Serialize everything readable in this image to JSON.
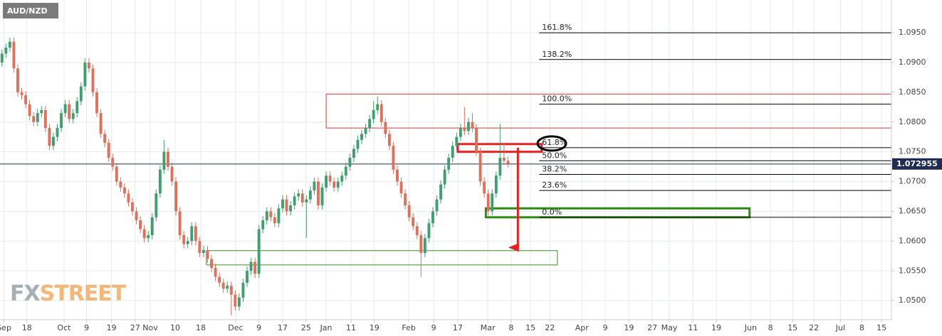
{
  "chart_data": {
    "type": "candlestick",
    "title": "AUD/NZD",
    "watermark": [
      "FX",
      "STREET"
    ],
    "up_color": "#3f9f6f",
    "down_color": "#e0705a",
    "grid": true,
    "xlim": [
      -0.5,
      225
    ],
    "ylim": [
      1.0468,
      1.1005
    ],
    "yticks": [
      {
        "value": 1.05,
        "label": "1.0500"
      },
      {
        "value": 1.055,
        "label": "1.0550"
      },
      {
        "value": 1.06,
        "label": "1.0600"
      },
      {
        "value": 1.065,
        "label": "1.0650"
      },
      {
        "value": 1.07,
        "label": "1.0700"
      },
      {
        "value": 1.075,
        "label": "1.0750"
      },
      {
        "value": 1.08,
        "label": "1.0800"
      },
      {
        "value": 1.085,
        "label": "1.0850"
      },
      {
        "value": 1.09,
        "label": "1.0900"
      },
      {
        "value": 1.095,
        "label": "1.0950"
      }
    ],
    "xticks": [
      {
        "value": 0.5,
        "label": "Sep"
      },
      {
        "value": 6.3,
        "label": "18"
      },
      {
        "value": 15.7,
        "label": "Oct"
      },
      {
        "value": 21.4,
        "label": "9"
      },
      {
        "value": 27.7,
        "label": "19"
      },
      {
        "value": 33.7,
        "label": "27"
      },
      {
        "value": 37.5,
        "label": "Nov"
      },
      {
        "value": 43.8,
        "label": "10"
      },
      {
        "value": 50.3,
        "label": "18"
      },
      {
        "value": 59.1,
        "label": "Dec"
      },
      {
        "value": 65,
        "label": "9"
      },
      {
        "value": 71,
        "label": "17"
      },
      {
        "value": 76.9,
        "label": "25"
      },
      {
        "value": 82,
        "label": "Jan"
      },
      {
        "value": 88.3,
        "label": "11"
      },
      {
        "value": 94.2,
        "label": "19"
      },
      {
        "value": 102.9,
        "label": "Feb"
      },
      {
        "value": 109.2,
        "label": "9"
      },
      {
        "value": 115.3,
        "label": "17"
      },
      {
        "value": 122.9,
        "label": "Mar"
      },
      {
        "value": 128.8,
        "label": "8"
      },
      {
        "value": 133.7,
        "label": "15"
      },
      {
        "value": 138.6,
        "label": "22"
      },
      {
        "value": 146.7,
        "label": "Apr"
      },
      {
        "value": 152.6,
        "label": "9"
      },
      {
        "value": 158.6,
        "label": "19"
      },
      {
        "value": 164.5,
        "label": "27"
      },
      {
        "value": 168.8,
        "label": "May"
      },
      {
        "value": 174.8,
        "label": "11"
      },
      {
        "value": 180.7,
        "label": "19"
      },
      {
        "value": 189.4,
        "label": "Jun"
      },
      {
        "value": 194.4,
        "label": "8"
      },
      {
        "value": 200,
        "label": "15"
      },
      {
        "value": 205.4,
        "label": "22"
      },
      {
        "value": 212.1,
        "label": "Jul"
      },
      {
        "value": 217.5,
        "label": "8"
      },
      {
        "value": 222.5,
        "label": "15"
      }
    ],
    "current_price": 1.072955,
    "current_price_color": "#1f2d55",
    "fib_start": 135.9,
    "fib_levels": [
      {
        "label": "161.8%",
        "value": 1.095
      },
      {
        "label": "138.2%",
        "value": 1.0905
      },
      {
        "label": "100.0%",
        "value": 1.083
      },
      {
        "label": "61.8%",
        "value": 1.0757
      },
      {
        "label": "50.0%",
        "value": 1.0735
      },
      {
        "label": "38.2%",
        "value": 1.0712
      },
      {
        "label": "23.6%",
        "value": 1.0685
      },
      {
        "label": "0.0%",
        "value": 1.064
      }
    ],
    "zones": [
      {
        "x": [
          82,
          225
        ],
        "y": [
          1.079,
          1.0847
        ],
        "color": "#e03a3a",
        "width": 1
      },
      {
        "x": [
          51.7,
          140.5
        ],
        "y": [
          1.056,
          1.0584
        ],
        "color": "#3a8a20",
        "width": 1
      },
      {
        "x": [
          122.4,
          189.1
        ],
        "y": [
          1.064,
          1.0655
        ],
        "color": "#2e8a10",
        "width": 3
      },
      {
        "x": [
          115.3,
          136.5
        ],
        "y": [
          1.075,
          1.0763
        ],
        "color": "#e82020",
        "width": 3
      }
    ],
    "arrow": {
      "x": 130.5,
      "y": [
        1.0757,
        1.0575
      ],
      "color": "#e82020"
    },
    "candles": [
      [
        1.09,
        1.0922,
        1.0893,
        1.0915
      ],
      [
        1.0915,
        1.0932,
        1.0908,
        1.0925
      ],
      [
        1.0925,
        1.0942,
        1.0918,
        1.0935
      ],
      [
        1.0935,
        1.0942,
        1.0883,
        1.089
      ],
      [
        1.089,
        1.0897,
        1.0843,
        1.085
      ],
      [
        1.085,
        1.0857,
        1.0838,
        1.0845
      ],
      [
        1.0845,
        1.0852,
        1.0823,
        1.083
      ],
      [
        1.083,
        1.0837,
        1.0803,
        1.081
      ],
      [
        1.081,
        1.0817,
        1.0793,
        1.08
      ],
      [
        1.08,
        1.0822,
        1.0793,
        1.0815
      ],
      [
        1.0815,
        1.0827,
        1.0808,
        1.082
      ],
      [
        1.082,
        1.0827,
        1.0783,
        1.079
      ],
      [
        1.079,
        1.0797,
        1.0753,
        1.076
      ],
      [
        1.076,
        1.0782,
        1.0753,
        1.0775
      ],
      [
        1.0775,
        1.0797,
        1.0768,
        1.079
      ],
      [
        1.079,
        1.0822,
        1.0783,
        1.0815
      ],
      [
        1.0815,
        1.0837,
        1.0808,
        1.083
      ],
      [
        1.083,
        1.0837,
        1.0798,
        1.0805
      ],
      [
        1.0805,
        1.0822,
        1.0798,
        1.0815
      ],
      [
        1.0815,
        1.0842,
        1.0808,
        1.0835
      ],
      [
        1.0835,
        1.0867,
        1.0828,
        1.086
      ],
      [
        1.086,
        1.0907,
        1.0853,
        1.09
      ],
      [
        1.09,
        1.0907,
        1.0883,
        1.089
      ],
      [
        1.089,
        1.0897,
        1.0843,
        1.085
      ],
      [
        1.085,
        1.0857,
        1.0808,
        1.0815
      ],
      [
        1.0815,
        1.0822,
        1.0773,
        1.078
      ],
      [
        1.078,
        1.0787,
        1.0758,
        1.0765
      ],
      [
        1.0765,
        1.0772,
        1.0733,
        1.074
      ],
      [
        1.074,
        1.0747,
        1.0718,
        1.0725
      ],
      [
        1.0725,
        1.0732,
        1.0693,
        1.07
      ],
      [
        1.07,
        1.0707,
        1.0683,
        1.069
      ],
      [
        1.069,
        1.0697,
        1.0673,
        1.068
      ],
      [
        1.068,
        1.0687,
        1.0658,
        1.0665
      ],
      [
        1.0665,
        1.0672,
        1.0643,
        1.065
      ],
      [
        1.065,
        1.0657,
        1.0628,
        1.0635
      ],
      [
        1.0635,
        1.0642,
        1.0613,
        1.062
      ],
      [
        1.062,
        1.0627,
        1.0598,
        1.0605
      ],
      [
        1.0605,
        1.0617,
        1.0598,
        1.061
      ],
      [
        1.061,
        1.0647,
        1.0603,
        1.064
      ],
      [
        1.064,
        1.0687,
        1.0633,
        1.068
      ],
      [
        1.068,
        1.0727,
        1.0673,
        1.072
      ],
      [
        1.072,
        1.077,
        1.0713,
        1.075
      ],
      [
        1.075,
        1.0757,
        1.0718,
        1.0725
      ],
      [
        1.0725,
        1.0732,
        1.0693,
        1.07
      ],
      [
        1.07,
        1.0707,
        1.0643,
        1.065
      ],
      [
        1.065,
        1.0657,
        1.0603,
        1.061
      ],
      [
        1.061,
        1.0617,
        1.0588,
        1.0595
      ],
      [
        1.0595,
        1.0607,
        1.0588,
        1.06
      ],
      [
        1.06,
        1.0632,
        1.0593,
        1.0625
      ],
      [
        1.0625,
        1.0632,
        1.0593,
        1.06
      ],
      [
        1.06,
        1.0607,
        1.0573,
        1.058
      ],
      [
        1.058,
        1.0592,
        1.0573,
        1.0585
      ],
      [
        1.0585,
        1.0592,
        1.0563,
        1.057
      ],
      [
        1.057,
        1.0577,
        1.0548,
        1.0555
      ],
      [
        1.0555,
        1.0562,
        1.0533,
        1.054
      ],
      [
        1.054,
        1.0547,
        1.0523,
        1.053
      ],
      [
        1.053,
        1.0537,
        1.0513,
        1.052
      ],
      [
        1.052,
        1.0532,
        1.0513,
        1.0525
      ],
      [
        1.0525,
        1.0532,
        1.0475,
        1.051
      ],
      [
        1.051,
        1.0517,
        1.0483,
        1.049
      ],
      [
        1.049,
        1.0512,
        1.0483,
        1.0505
      ],
      [
        1.0505,
        1.0537,
        1.0498,
        1.053
      ],
      [
        1.053,
        1.0557,
        1.0523,
        1.055
      ],
      [
        1.055,
        1.0572,
        1.0543,
        1.0565
      ],
      [
        1.0565,
        1.0572,
        1.0538,
        1.0545
      ],
      [
        1.0545,
        1.0627,
        1.0538,
        1.062
      ],
      [
        1.062,
        1.0642,
        1.0613,
        1.0635
      ],
      [
        1.0635,
        1.0657,
        1.0628,
        1.065
      ],
      [
        1.065,
        1.0657,
        1.0633,
        1.064
      ],
      [
        1.064,
        1.0647,
        1.0623,
        1.063
      ],
      [
        1.063,
        1.0662,
        1.0623,
        1.0655
      ],
      [
        1.0655,
        1.0677,
        1.0648,
        1.067
      ],
      [
        1.067,
        1.0677,
        1.0643,
        1.065
      ],
      [
        1.065,
        1.0667,
        1.0643,
        1.066
      ],
      [
        1.066,
        1.0682,
        1.0653,
        1.0675
      ],
      [
        1.0675,
        1.0687,
        1.0668,
        1.068
      ],
      [
        1.068,
        1.0687,
        1.0658,
        1.0665
      ],
      [
        1.0665,
        1.0677,
        1.0605,
        1.067
      ],
      [
        1.067,
        1.0692,
        1.0663,
        1.0685
      ],
      [
        1.0685,
        1.0707,
        1.0678,
        1.07
      ],
      [
        1.07,
        1.0707,
        1.0653,
        1.066
      ],
      [
        1.066,
        1.0697,
        1.0653,
        1.069
      ],
      [
        1.069,
        1.0717,
        1.0683,
        1.071
      ],
      [
        1.071,
        1.0717,
        1.0693,
        1.07
      ],
      [
        1.07,
        1.0707,
        1.0683,
        1.069
      ],
      [
        1.069,
        1.0707,
        1.0683,
        1.07
      ],
      [
        1.07,
        1.0717,
        1.0693,
        1.071
      ],
      [
        1.071,
        1.0732,
        1.0703,
        1.0725
      ],
      [
        1.0725,
        1.0747,
        1.0718,
        1.074
      ],
      [
        1.074,
        1.0762,
        1.0733,
        1.0755
      ],
      [
        1.0755,
        1.0777,
        1.0748,
        1.077
      ],
      [
        1.077,
        1.0787,
        1.0763,
        1.078
      ],
      [
        1.078,
        1.0797,
        1.0773,
        1.079
      ],
      [
        1.079,
        1.0812,
        1.0783,
        1.0805
      ],
      [
        1.0805,
        1.0835,
        1.0798,
        1.082
      ],
      [
        1.082,
        1.0843,
        1.0813,
        1.083
      ],
      [
        1.083,
        1.0837,
        1.0793,
        1.08
      ],
      [
        1.08,
        1.0807,
        1.0773,
        1.078
      ],
      [
        1.078,
        1.0787,
        1.0753,
        1.076
      ],
      [
        1.076,
        1.0767,
        1.0713,
        1.072
      ],
      [
        1.072,
        1.0727,
        1.0693,
        1.07
      ],
      [
        1.07,
        1.0707,
        1.0673,
        1.068
      ],
      [
        1.068,
        1.0687,
        1.0653,
        1.066
      ],
      [
        1.066,
        1.0667,
        1.0633,
        1.064
      ],
      [
        1.064,
        1.0647,
        1.0618,
        1.0625
      ],
      [
        1.0625,
        1.0632,
        1.0603,
        1.061
      ],
      [
        1.061,
        1.0617,
        1.054,
        1.058
      ],
      [
        1.058,
        1.0612,
        1.0573,
        1.0605
      ],
      [
        1.0605,
        1.0637,
        1.0598,
        1.063
      ],
      [
        1.063,
        1.0657,
        1.0623,
        1.065
      ],
      [
        1.065,
        1.0677,
        1.0643,
        1.067
      ],
      [
        1.067,
        1.0702,
        1.0663,
        1.0695
      ],
      [
        1.0695,
        1.0727,
        1.0688,
        1.072
      ],
      [
        1.072,
        1.0747,
        1.0713,
        1.074
      ],
      [
        1.074,
        1.0767,
        1.0733,
        1.076
      ],
      [
        1.076,
        1.0782,
        1.0753,
        1.0775
      ],
      [
        1.0775,
        1.0797,
        1.0768,
        1.079
      ],
      [
        1.079,
        1.0825,
        1.0778,
        1.0785
      ],
      [
        1.0785,
        1.0807,
        1.0778,
        1.08
      ],
      [
        1.08,
        1.0815,
        1.0783,
        1.079
      ],
      [
        1.079,
        1.0797,
        1.0743,
        1.075
      ],
      [
        1.075,
        1.0757,
        1.0693,
        1.07
      ],
      [
        1.07,
        1.0707,
        1.0673,
        1.068
      ],
      [
        1.068,
        1.0687,
        1.0643,
        1.065
      ],
      [
        1.065,
        1.0687,
        1.0643,
        1.068
      ],
      [
        1.068,
        1.0717,
        1.0673,
        1.071
      ],
      [
        1.071,
        1.0797,
        1.0703,
        1.074
      ],
      [
        1.074,
        1.0765,
        1.0728,
        1.0735
      ],
      [
        1.0735,
        1.0742,
        1.0723,
        1.073
      ]
    ]
  }
}
